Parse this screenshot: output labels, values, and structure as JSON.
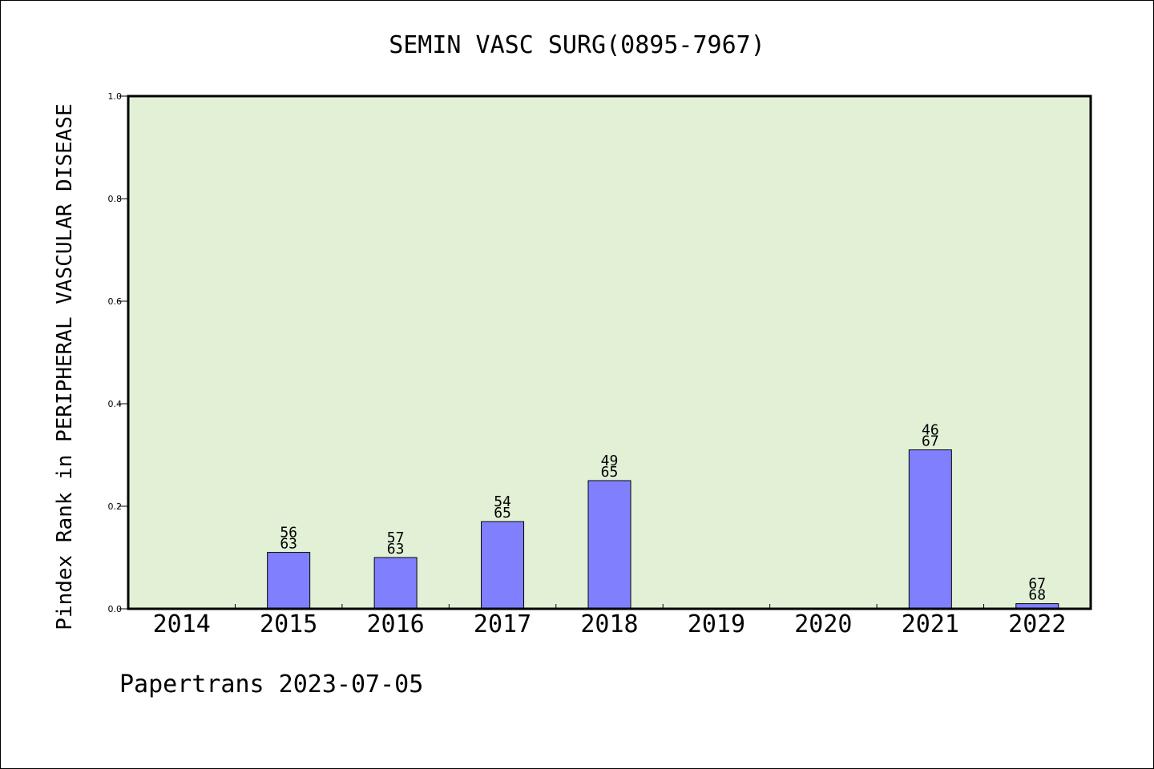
{
  "chart_data": {
    "type": "bar",
    "title": "SEMIN VASC SURG(0895-7967)",
    "ylabel": "Pindex Rank in PERIPHERAL VASCULAR DISEASE",
    "xlabel": "",
    "footer": "Papertrans 2023-07-05",
    "ylim": [
      0,
      1.0
    ],
    "yticks": [
      "0.0",
      "0.2",
      "0.4",
      "0.6",
      "0.8",
      "1.0"
    ],
    "ytick_values": [
      0,
      0.2,
      0.4,
      0.6,
      0.8,
      1.0
    ],
    "categories": [
      "2014",
      "2015",
      "2016",
      "2017",
      "2018",
      "2019",
      "2020",
      "2021",
      "2022"
    ],
    "values": [
      null,
      0.11,
      0.1,
      0.17,
      0.25,
      null,
      null,
      0.31,
      0.01
    ],
    "rank_labels": [
      null,
      "56",
      "57",
      "54",
      "49",
      null,
      null,
      "46",
      "67"
    ],
    "total_labels": [
      null,
      "63",
      "63",
      "65",
      "65",
      null,
      null,
      "67",
      "68"
    ],
    "grid": false,
    "colors": {
      "plot_background": "#e2f0d6",
      "bar_fill": "#8080ff",
      "bar_stroke": "#000000",
      "axis": "#000000"
    }
  }
}
